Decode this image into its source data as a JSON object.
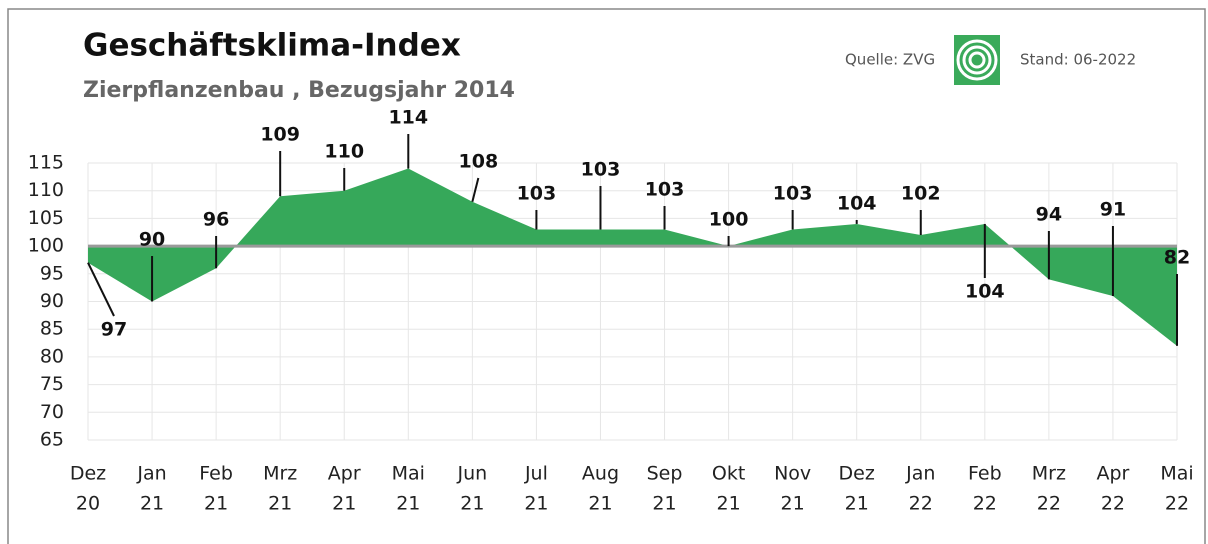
{
  "chart_data": {
    "type": "area",
    "title": "Geschäftsklima-Index",
    "subtitle": "Zierpflanzenbau , Bezugsjahr 2014",
    "source": "Quelle: ZVG",
    "date": "Stand: 06-2022",
    "categories": [
      [
        "Dez",
        "20"
      ],
      [
        "Jan",
        "21"
      ],
      [
        "Feb",
        "21"
      ],
      [
        "Mrz",
        "21"
      ],
      [
        "Apr",
        "21"
      ],
      [
        "Mai",
        "21"
      ],
      [
        "Jun",
        "21"
      ],
      [
        "Jul",
        "21"
      ],
      [
        "Aug",
        "21"
      ],
      [
        "Sep",
        "21"
      ],
      [
        "Okt",
        "21"
      ],
      [
        "Nov",
        "21"
      ],
      [
        "Dez",
        "21"
      ],
      [
        "Jan",
        "22"
      ],
      [
        "Feb",
        "22"
      ],
      [
        "Mrz",
        "22"
      ],
      [
        "Apr",
        "22"
      ],
      [
        "Mai",
        "22"
      ]
    ],
    "values": [
      97,
      90,
      96,
      109,
      110,
      114,
      108,
      103,
      103,
      103,
      100,
      103,
      104,
      102,
      104,
      94,
      91,
      82
    ],
    "baseline": 100,
    "color": "#36a85a",
    "ylim": [
      65,
      115
    ],
    "yticks": [
      65,
      70,
      75,
      80,
      85,
      90,
      95,
      100,
      105,
      110,
      115
    ],
    "grid": true
  }
}
